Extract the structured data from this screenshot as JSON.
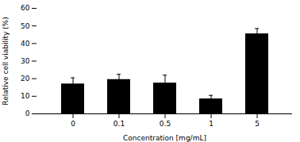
{
  "chart_data": {
    "type": "bar",
    "categories": [
      "0",
      "0.1",
      "0.5",
      "1",
      "5"
    ],
    "values": [
      17.0,
      19.5,
      17.5,
      8.5,
      45.5
    ],
    "errors": [
      3.5,
      3.0,
      4.5,
      2.0,
      3.0
    ],
    "color": "#000000",
    "xlabel": "Concentration [mg/mL]",
    "ylabel": "Relative cell viability (%)",
    "ylim": [
      0,
      60
    ],
    "yticks": [
      0,
      10,
      20,
      30,
      40,
      50,
      60
    ]
  }
}
